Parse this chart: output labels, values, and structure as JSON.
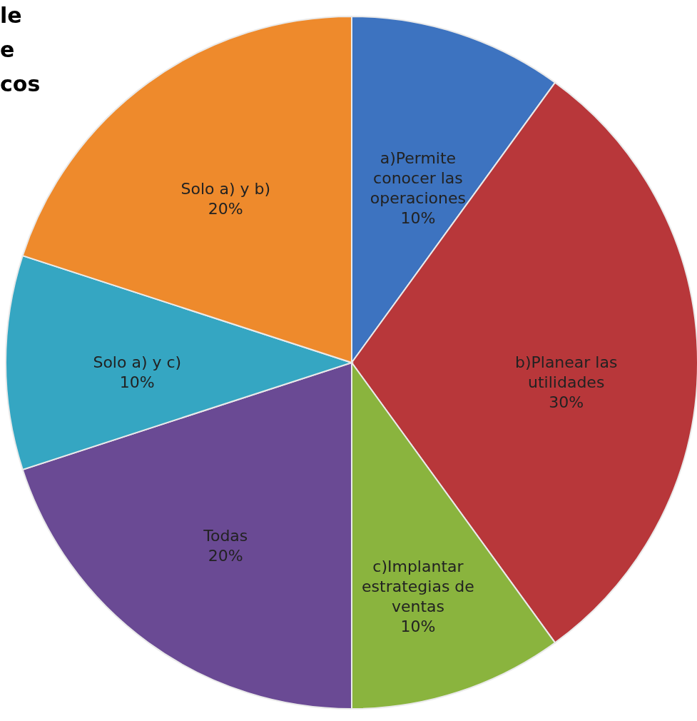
{
  "chart_data": {
    "type": "pie",
    "title": "le\ne\ncos",
    "categories": [
      "a)Permite\nconocer las\noperaciones",
      "b)Planear las\nutilidades",
      "c)Implantar\nestrategias de\nventas",
      "Todas",
      "Solo a) y c)",
      "Solo a) y b)"
    ],
    "values": [
      10,
      30,
      10,
      20,
      10,
      20
    ],
    "value_labels": [
      "10%",
      "30%",
      "10%",
      "20%",
      "10%",
      "20%"
    ],
    "colors": [
      "#3d73c0",
      "#b8373a",
      "#8ab43e",
      "#6a4a94",
      "#35a6c2",
      "#ee8a2c"
    ]
  }
}
